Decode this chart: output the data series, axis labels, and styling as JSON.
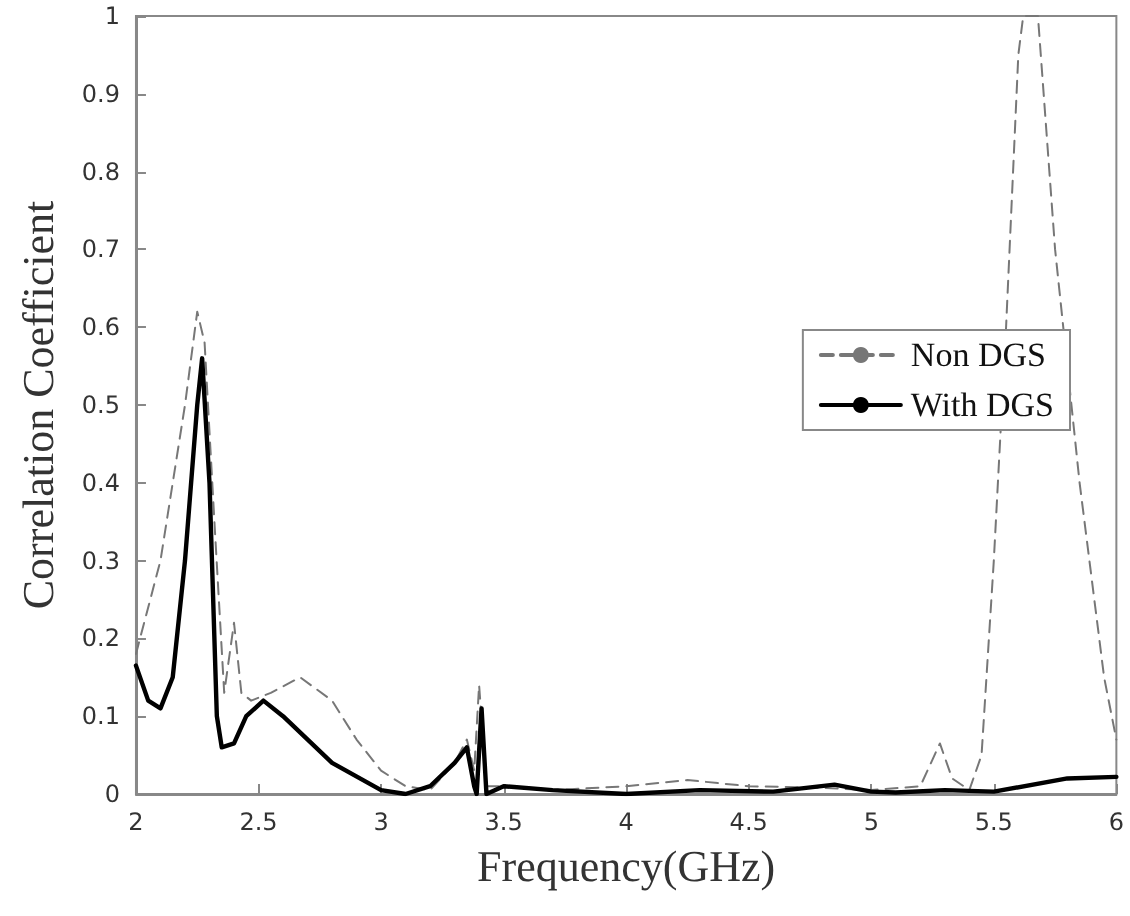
{
  "chart_data": {
    "type": "line",
    "xlabel": "Frequency(GHz)",
    "ylabel": "Correlation Coefficient",
    "xlim": [
      2,
      6
    ],
    "xticks": [
      2,
      2.5,
      3,
      3.5,
      4,
      4.5,
      5,
      5.5,
      6
    ],
    "ylim": [
      0,
      1
    ],
    "yticks": [
      0,
      0.1,
      0.2,
      0.3,
      0.4,
      0.5,
      0.6,
      0.7,
      0.8,
      0.9,
      1
    ],
    "grid": false,
    "legend": "right",
    "marker": "none",
    "series": [
      {
        "name": "Non DGS",
        "color": "#777777",
        "line_style": "dashed",
        "x": [
          2.0,
          2.1,
          2.2,
          2.25,
          2.28,
          2.32,
          2.36,
          2.4,
          2.43,
          2.47,
          2.55,
          2.67,
          2.8,
          2.9,
          3.0,
          3.1,
          3.2,
          3.3,
          3.35,
          3.38,
          3.4,
          3.43,
          3.5,
          3.7,
          4.0,
          4.25,
          4.5,
          4.8,
          5.0,
          5.2,
          5.28,
          5.33,
          5.4,
          5.45,
          5.5,
          5.55,
          5.6,
          5.62,
          5.68,
          5.75,
          5.85,
          5.95,
          6.0
        ],
        "values": [
          0.18,
          0.3,
          0.5,
          0.62,
          0.58,
          0.35,
          0.13,
          0.22,
          0.13,
          0.12,
          0.13,
          0.15,
          0.12,
          0.07,
          0.03,
          0.01,
          0.005,
          0.04,
          0.07,
          0.03,
          0.14,
          0.01,
          0.01,
          0.005,
          0.01,
          0.018,
          0.01,
          0.008,
          0.005,
          0.01,
          0.065,
          0.02,
          0.005,
          0.05,
          0.3,
          0.6,
          0.95,
          1,
          1,
          0.7,
          0.4,
          0.15,
          0.07
        ]
      },
      {
        "name": "With DGS",
        "color": "#000000",
        "line_style": "solid",
        "x": [
          2.0,
          2.05,
          2.1,
          2.15,
          2.2,
          2.25,
          2.27,
          2.3,
          2.33,
          2.35,
          2.4,
          2.45,
          2.52,
          2.6,
          2.8,
          3.0,
          3.1,
          3.2,
          3.3,
          3.35,
          3.38,
          3.39,
          3.41,
          3.43,
          3.5,
          3.7,
          4.0,
          4.3,
          4.6,
          4.85,
          5.0,
          5.1,
          5.3,
          5.5,
          5.8,
          6.0
        ],
        "values": [
          0.165,
          0.12,
          0.11,
          0.15,
          0.3,
          0.5,
          0.56,
          0.4,
          0.1,
          0.06,
          0.065,
          0.1,
          0.12,
          0.1,
          0.04,
          0.005,
          0,
          0.01,
          0.04,
          0.06,
          0.01,
          0,
          0.11,
          0,
          0.01,
          0.005,
          0,
          0.005,
          0.003,
          0.012,
          0.003,
          0.002,
          0.005,
          0.003,
          0.02,
          0.022
        ]
      }
    ]
  }
}
